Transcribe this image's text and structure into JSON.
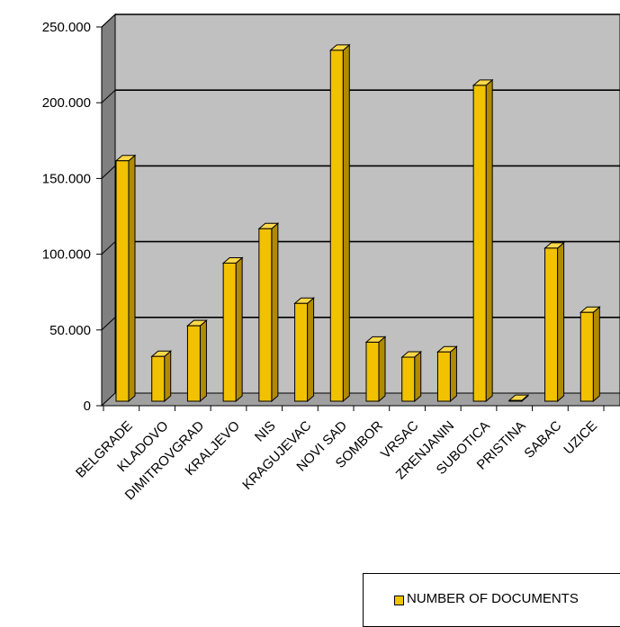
{
  "chart_data": {
    "type": "bar",
    "title": "",
    "xlabel": "",
    "ylabel": "",
    "categories": [
      "BELGRADE",
      "KLADOVO",
      "DIMITROVGRAD",
      "KRALJEVO",
      "NIS",
      "KRAGUJEVAC",
      "NOVI SAD",
      "SOMBOR",
      "VRSAC",
      "ZRENJANIN",
      "SUBOTICA",
      "PRISTINA",
      "SABAC",
      "UZICE"
    ],
    "series": [
      {
        "name": "NUMBER OF DOCUMENTS",
        "values": [
          161000,
          30000,
          50500,
          92500,
          115500,
          65500,
          235000,
          39500,
          29500,
          33000,
          211500,
          500,
          102500,
          59500
        ],
        "color": "#f2c200"
      }
    ],
    "ylim": [
      0,
      250000
    ],
    "yticks": [
      0,
      50000,
      100000,
      150000,
      200000,
      250000
    ],
    "ytick_labels": [
      "0",
      "50.000",
      "100.000",
      "150.000",
      "200.000",
      "250.000"
    ],
    "grid": true,
    "plot_background": "#c0c0c0",
    "wall_color": "#808080",
    "legend": {
      "position": "bottom-right",
      "label": "NUMBER OF DOCUMENTS"
    }
  }
}
